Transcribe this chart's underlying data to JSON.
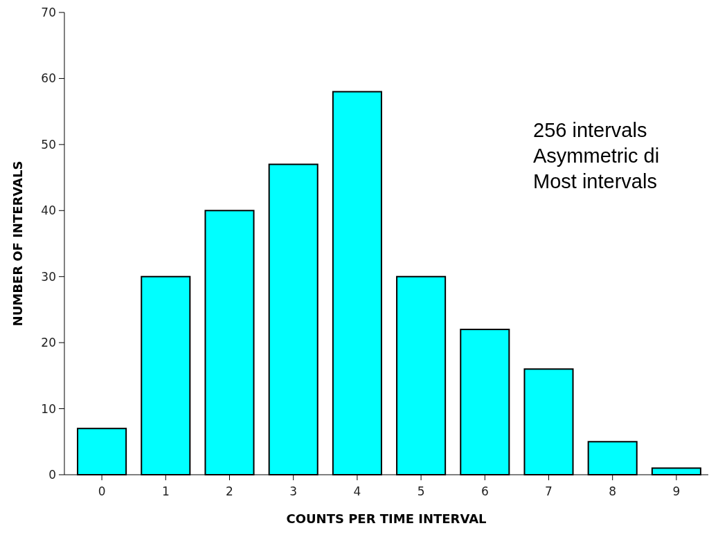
{
  "chart_data": {
    "type": "bar",
    "xlabel": "COUNTS PER TIME INTERVAL",
    "ylabel": "NUMBER OF INTERVALS",
    "categories": [
      "0",
      "1",
      "2",
      "3",
      "4",
      "5",
      "6",
      "7",
      "8",
      "9"
    ],
    "values": [
      7,
      30,
      40,
      47,
      58,
      30,
      22,
      16,
      5,
      1
    ],
    "color": "#00ffff",
    "ylim": [
      0,
      70
    ],
    "yticks": [
      0,
      10,
      20,
      30,
      40,
      50,
      60,
      70
    ],
    "grid": false,
    "annotations": [
      "256 intervals",
      "Asymmetric di",
      "Most intervals"
    ]
  }
}
